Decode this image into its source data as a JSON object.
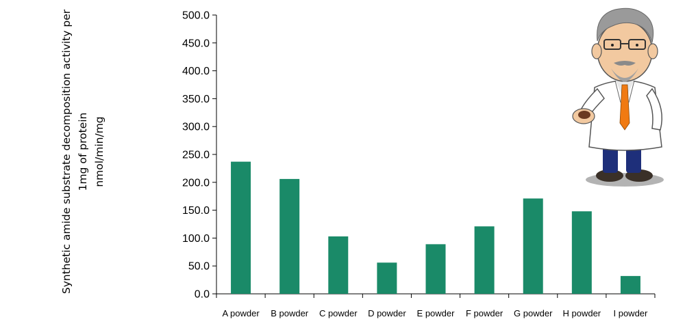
{
  "chart_data": {
    "type": "bar",
    "title": "",
    "xlabel": "",
    "ylabel": [
      "Synthetic amide substrate decomposition activity per",
      "1mg of protein",
      "nmol/min/mg"
    ],
    "categories": [
      "A powder",
      "B powder",
      "C powder",
      "D powder",
      "E powder",
      "F powder",
      "G powder",
      "H powder",
      "I powder"
    ],
    "values": [
      237,
      206,
      103,
      56,
      89,
      121,
      171,
      148,
      32
    ],
    "ylim": [
      0,
      500
    ],
    "yticks": [
      "0.0",
      "50.0",
      "100.0",
      "150.0",
      "200.0",
      "250.0",
      "300.0",
      "350.0",
      "400.0",
      "450.0",
      "500.0"
    ],
    "bar_color": "#1a8a68",
    "grid": false,
    "legend": "none"
  },
  "decoration": {
    "mascot_icon": "scientist-mascot-icon"
  }
}
